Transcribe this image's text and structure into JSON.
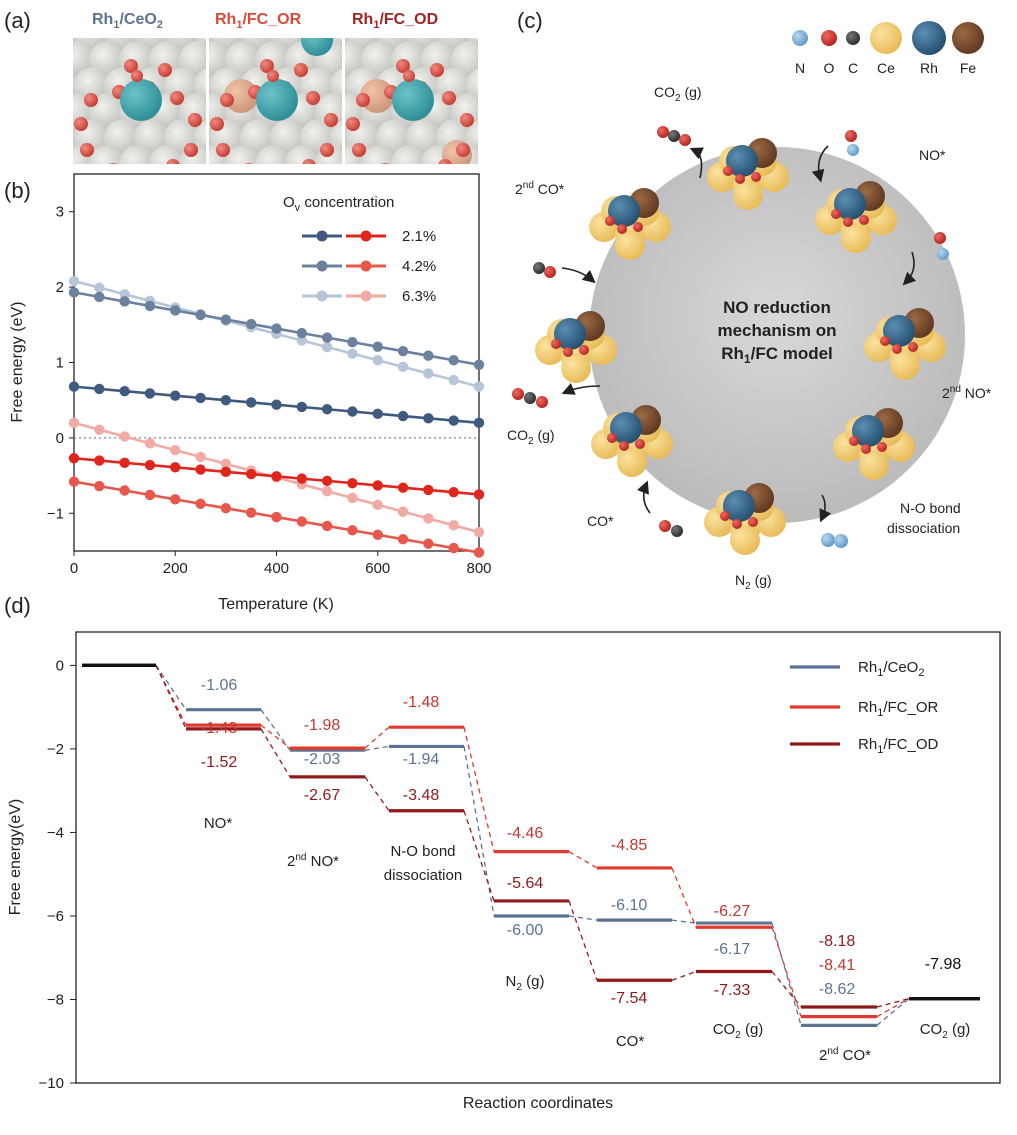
{
  "panels": {
    "a": "(a)",
    "b": "(b)",
    "c": "(c)",
    "d": "(d)"
  },
  "colors": {
    "ceo2": "#5d7392",
    "ceo2_dark": "#3f5a7e",
    "fc_or": "#e23a2e",
    "fc_od": "#8e1a1c",
    "gray": "#c2c2c2",
    "ce": "#f0c968",
    "rh": "#2f6e8e",
    "fe": "#7a4a2c",
    "n": "#7cb0d8",
    "o": "#d83a35",
    "c": "#444444"
  },
  "panel_a": {
    "labels": [
      {
        "main": "Rh",
        "sub": "1",
        "rest": "/CeO",
        "sub2": "2",
        "color": "#5d7392"
      },
      {
        "main": "Rh",
        "sub": "1",
        "rest": "/FC_OR",
        "sub2": "",
        "color": "#d94a3a"
      },
      {
        "main": "Rh",
        "sub": "1",
        "rest": "/FC_OD",
        "sub2": "",
        "color": "#a12526"
      }
    ]
  },
  "panel_b": {
    "chart_data": {
      "type": "line",
      "xlabel": "Temperature (K)",
      "ylabel": "Free energy (eV)",
      "xlim": [
        0,
        800
      ],
      "ylim": [
        -1.5,
        3.5
      ],
      "xticks": [
        0,
        200,
        400,
        600,
        800
      ],
      "yticks": [
        -1,
        0,
        1,
        2,
        3
      ],
      "x": [
        0,
        50,
        100,
        150,
        200,
        250,
        300,
        350,
        400,
        450,
        500,
        550,
        600,
        650,
        700,
        750,
        800
      ],
      "legend_title": "Oᵥ concentration",
      "legend_items": [
        "2.1%",
        "4.2%",
        "6.3%"
      ],
      "series": [
        {
          "group": "Rh1/CeO2",
          "conc": "2.1%",
          "start": 0.68,
          "end": 0.2,
          "color": "#3f5a7e",
          "opacity": 1
        },
        {
          "group": "Rh1/CeO2",
          "conc": "4.2%",
          "start": 1.93,
          "end": 0.97,
          "color": "#6b819e",
          "opacity": 1
        },
        {
          "group": "Rh1/CeO2",
          "conc": "6.3%",
          "start": 2.08,
          "end": 0.68,
          "color": "#b7c5d8",
          "opacity": 1
        },
        {
          "group": "Rh1/FC",
          "conc": "2.1%",
          "start": -0.27,
          "end": -0.75,
          "color": "#e0261c",
          "opacity": 1
        },
        {
          "group": "Rh1/FC",
          "conc": "4.2%",
          "start": -0.58,
          "end": -1.52,
          "color": "#e7574c",
          "opacity": 1
        },
        {
          "group": "Rh1/FC",
          "conc": "6.3%",
          "start": 0.2,
          "end": -1.25,
          "color": "#f2aaa4",
          "opacity": 1
        }
      ]
    }
  },
  "panel_c": {
    "legend": [
      "N",
      "O",
      "C",
      "Ce",
      "Rh",
      "Fe"
    ],
    "center": [
      "NO reduction",
      "mechanism on",
      "Rh₁/FC model"
    ],
    "labels": {
      "co2_top": "CO₂ (g)",
      "no": "NO*",
      "second_co": "CO*",
      "second_no": "NO*",
      "co2_left": "CO₂ (g)",
      "co": "CO*",
      "n2": "N₂ (g)",
      "no_bond_1": "N-O bond",
      "no_bond_2": "dissociation",
      "nd": "nd"
    }
  },
  "panel_d": {
    "chart_data": {
      "type": "line",
      "xlabel": "Reaction coordinates",
      "ylabel": "Free energy(eV)",
      "ylim": [
        -10,
        0.8
      ],
      "yticks": [
        0,
        -2,
        -4,
        -6,
        -8,
        -10
      ],
      "steps": [
        "",
        "NO*",
        "2nd NO*",
        "N-O bond dissociation",
        "N₂ (g)",
        "CO*",
        "CO₂ (g)",
        "2nd CO*",
        "CO₂ (g)"
      ],
      "series": [
        {
          "name": "Rh₁/CeO₂",
          "values": [
            0,
            -1.06,
            -2.03,
            -1.94,
            -6.0,
            -6.1,
            -6.17,
            -8.62,
            -7.98
          ],
          "color": "#5d7392"
        },
        {
          "name": "Rh₁/FC_OR",
          "values": [
            0,
            -1.43,
            -1.98,
            -1.48,
            -4.46,
            -4.85,
            -6.27,
            -8.41,
            -7.98
          ],
          "color": "#e23a2e"
        },
        {
          "name": "Rh₁/FC_OD",
          "values": [
            0,
            -1.52,
            -2.67,
            -3.48,
            -5.64,
            -7.54,
            -7.33,
            -8.18,
            -7.98
          ],
          "color": "#8e1a1c"
        }
      ],
      "value_labels": {
        "s1": [
          "-1.06",
          "-1.43",
          "-1.52"
        ],
        "s2": [
          "-1.98",
          "-2.03",
          "-2.67"
        ],
        "s3": [
          "-1.48",
          "-1.94",
          "-3.48"
        ],
        "s4": [
          "-4.46",
          "-5.64",
          "-6.00"
        ],
        "s5": [
          "-4.85",
          "-6.10",
          "-7.54"
        ],
        "s6": [
          "-6.27",
          "-6.17",
          "-7.33"
        ],
        "s7": [
          "-8.18",
          "-8.41",
          "-8.62"
        ],
        "s8": [
          "-7.98"
        ]
      },
      "step_labels": {
        "no": "NO*",
        "second_no": "NO*",
        "nob1": "N-O bond",
        "nob2": "dissociation",
        "n2": "N₂ (g)",
        "co": "CO*",
        "co2a": "CO₂ (g)",
        "second_co": "CO*",
        "co2b": "CO₂ (g)",
        "nd": "nd"
      },
      "legend": [
        "Rh₁/CeO₂",
        "Rh₁/FC_OR",
        "Rh₁/FC_OD"
      ]
    }
  }
}
